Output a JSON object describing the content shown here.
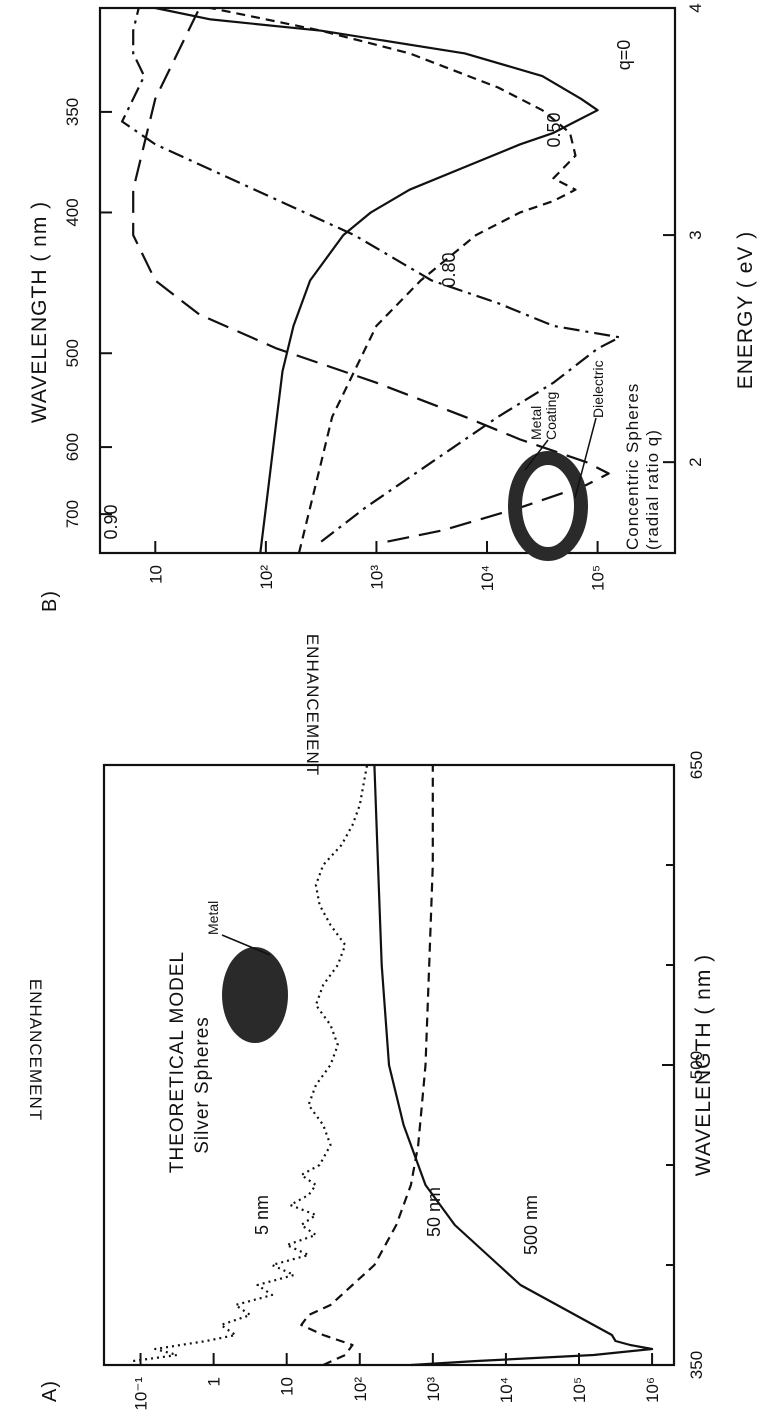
{
  "chart_data": [
    {
      "panel": "A)",
      "type": "line",
      "title": "THEORETICAL MODEL",
      "subtitle": "Silver Spheres",
      "inset_label": "Metal",
      "xlabel": "WAVELENGTH ( nm )",
      "ylabel": "ENHANCEMENT",
      "xlim": [
        350,
        650
      ],
      "ylim_log10": [
        -1.5,
        6.3
      ],
      "yscale": "log",
      "xticks": [
        "350",
        "500",
        "650"
      ],
      "yticks": [
        "10⁻¹",
        "1",
        "10",
        "10²",
        "10³",
        "10⁴",
        "10⁵",
        "10⁶"
      ],
      "series": [
        {
          "name": "5 nm",
          "style": "solid",
          "x": [
            350,
            352,
            355,
            358,
            360,
            362,
            365,
            370,
            380,
            390,
            400,
            420,
            440,
            470,
            500,
            550,
            600,
            650
          ],
          "log10_y": [
            2.7,
            3.6,
            5.2,
            6.0,
            5.7,
            5.5,
            5.45,
            5.2,
            4.7,
            4.2,
            3.9,
            3.3,
            2.9,
            2.6,
            2.4,
            2.3,
            2.25,
            2.2
          ]
        },
        {
          "name": "50 nm",
          "style": "dashed",
          "x": [
            350,
            355,
            360,
            365,
            370,
            375,
            380,
            390,
            400,
            420,
            440,
            460,
            480,
            500,
            550,
            600,
            650
          ],
          "log10_y": [
            1.5,
            1.8,
            1.9,
            1.5,
            1.2,
            1.3,
            1.6,
            1.9,
            2.2,
            2.5,
            2.7,
            2.8,
            2.85,
            2.9,
            2.95,
            3.0,
            3.0
          ]
        },
        {
          "name": "500 nm",
          "style": "dotted",
          "x": [
            352,
            355,
            358,
            362,
            365,
            370,
            375,
            380,
            385,
            390,
            395,
            400,
            405,
            410,
            415,
            420,
            425,
            430,
            435,
            440,
            445,
            450,
            460,
            470,
            480,
            490,
            500,
            510,
            520,
            530,
            540,
            550,
            560,
            570,
            580,
            590,
            600,
            610,
            620,
            630,
            640,
            650
          ],
          "log10_y": [
            -1.1,
            -0.5,
            -0.8,
            -0.1,
            0.3,
            0.1,
            0.5,
            0.3,
            0.8,
            0.6,
            1.1,
            0.8,
            1.3,
            1.0,
            1.4,
            1.2,
            1.4,
            1.05,
            1.3,
            1.4,
            1.2,
            1.45,
            1.6,
            1.5,
            1.3,
            1.4,
            1.6,
            1.7,
            1.6,
            1.4,
            1.5,
            1.7,
            1.8,
            1.6,
            1.45,
            1.4,
            1.5,
            1.75,
            1.9,
            2.0,
            2.05,
            2.1
          ]
        }
      ]
    },
    {
      "panel": "B)",
      "type": "line",
      "top_xlabel": "WAVELENGTH ( nm )",
      "top_xticks": [
        "700",
        "600",
        "500",
        "400",
        "350"
      ],
      "xlabel": "ENERGY ( eV )",
      "ylabel": "ENHANCEMENT",
      "xlim": [
        1.6,
        4.0
      ],
      "ylim_log10": [
        0.5,
        5.7
      ],
      "yscale": "log",
      "xticks": [
        "2",
        "3",
        "4"
      ],
      "yticks": [
        "10",
        "10²",
        "10³",
        "10⁴",
        "10⁵"
      ],
      "legend": [
        "Metal",
        "Coating",
        "Dielectric",
        "Concentric Spheres",
        "(radial ratio q)"
      ],
      "series": [
        {
          "name": "q=0",
          "style": "solid",
          "x": [
            1.6,
            1.8,
            2.0,
            2.2,
            2.4,
            2.6,
            2.8,
            3.0,
            3.1,
            3.2,
            3.3,
            3.4,
            3.45,
            3.5,
            3.55,
            3.6,
            3.7,
            3.8,
            3.9,
            3.95,
            4.0
          ],
          "log10_y": [
            1.95,
            2.0,
            2.05,
            2.1,
            2.15,
            2.25,
            2.4,
            2.7,
            2.95,
            3.3,
            3.8,
            4.3,
            4.6,
            4.8,
            5.0,
            4.85,
            4.5,
            3.8,
            2.5,
            1.5,
            1.0
          ]
        },
        {
          "name": "0.50",
          "style": "dashed",
          "x": [
            1.6,
            1.8,
            2.0,
            2.2,
            2.4,
            2.6,
            2.8,
            3.0,
            3.1,
            3.15,
            3.2,
            3.25,
            3.3,
            3.35,
            3.45,
            3.55,
            3.65,
            3.8,
            3.9,
            4.0
          ],
          "log10_y": [
            2.3,
            2.4,
            2.5,
            2.6,
            2.8,
            3.0,
            3.4,
            3.9,
            4.3,
            4.6,
            4.8,
            4.6,
            4.7,
            4.8,
            4.75,
            4.5,
            4.1,
            3.3,
            2.5,
            1.5
          ]
        },
        {
          "name": "0.80",
          "style": "dash-dot",
          "x": [
            1.65,
            1.8,
            2.0,
            2.2,
            2.35,
            2.5,
            2.55,
            2.6,
            2.7,
            2.8,
            3.0,
            3.2,
            3.4,
            3.5,
            3.6,
            3.7,
            3.8,
            3.9,
            4.0
          ],
          "log10_y": [
            2.5,
            2.9,
            3.5,
            4.1,
            4.6,
            5.0,
            5.2,
            4.6,
            4.1,
            3.5,
            2.8,
            1.9,
            1.0,
            0.7,
            0.8,
            0.9,
            0.8,
            0.8,
            0.85
          ]
        },
        {
          "name": "0.90",
          "style": "long-dash",
          "x": [
            1.65,
            1.7,
            1.8,
            1.9,
            1.95,
            2.0,
            2.1,
            2.2,
            2.35,
            2.5,
            2.65,
            2.8,
            3.0,
            3.2,
            3.4,
            3.6,
            3.8,
            4.0
          ],
          "log10_y": [
            3.1,
            3.6,
            4.3,
            4.9,
            5.1,
            4.9,
            4.3,
            3.8,
            3.0,
            2.1,
            1.4,
            1.0,
            0.8,
            0.8,
            0.9,
            1.0,
            1.2,
            1.4
          ]
        }
      ]
    }
  ]
}
